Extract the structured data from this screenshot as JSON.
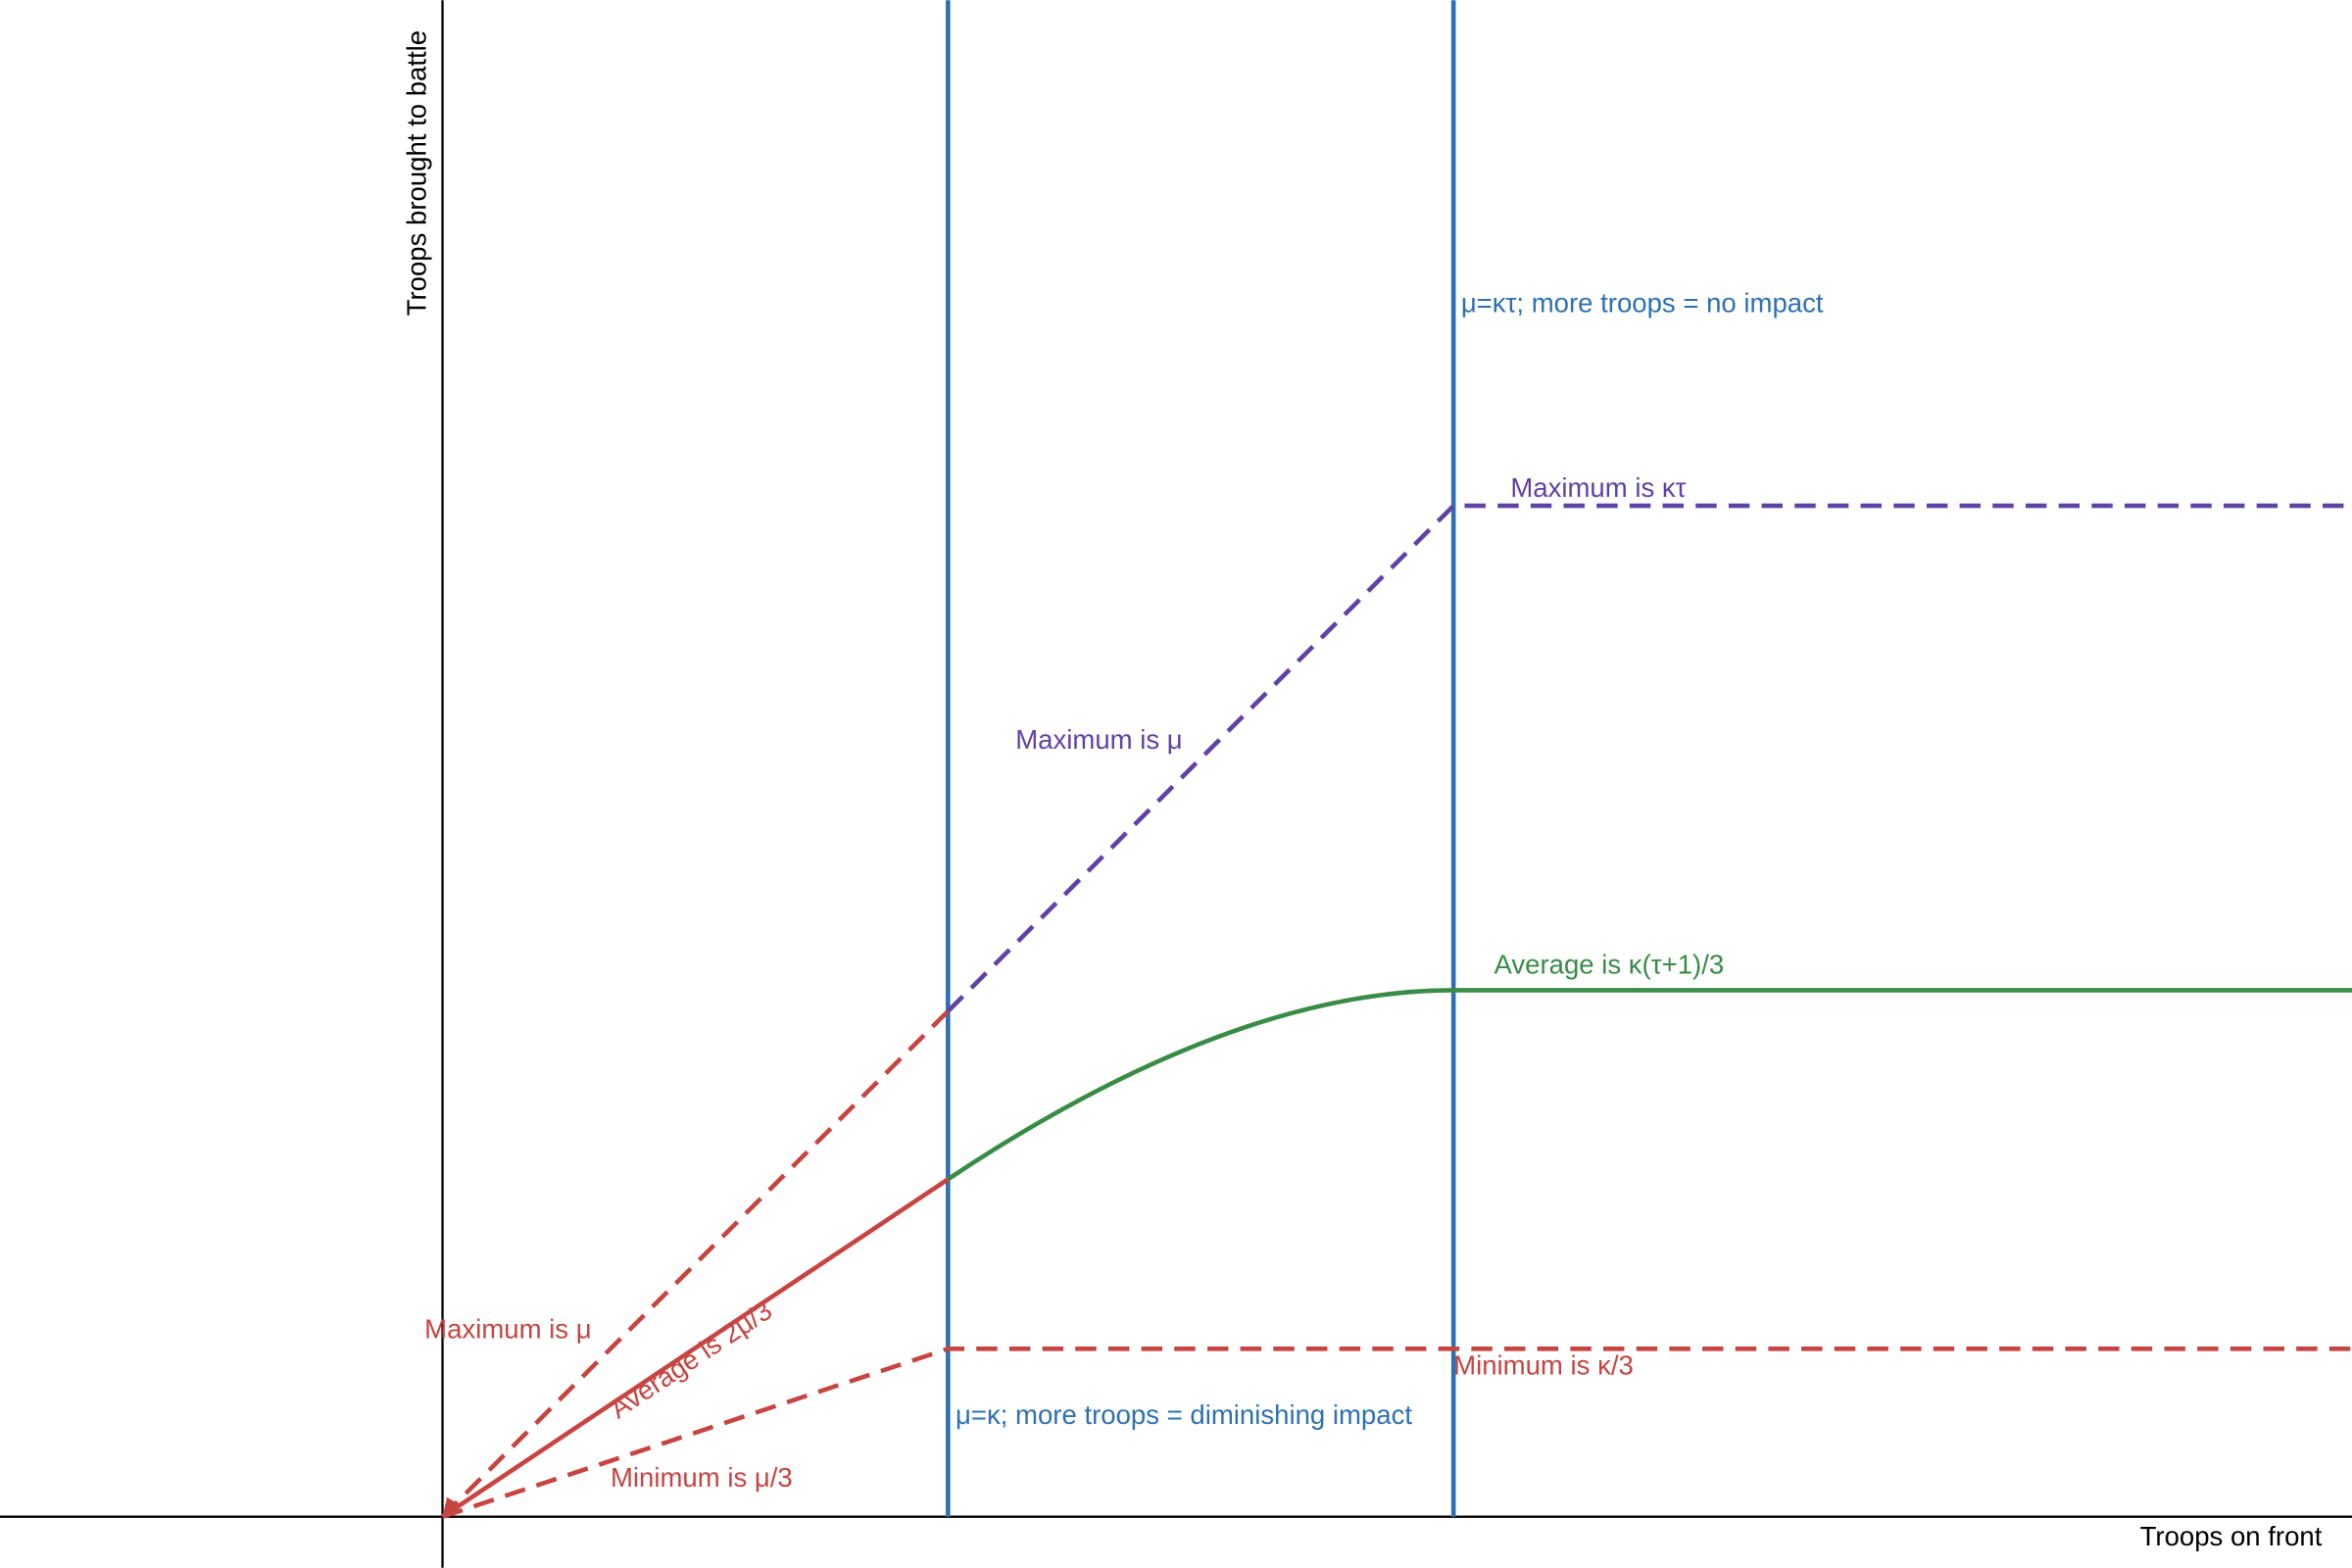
{
  "axes": {
    "x_label": "Troops on front",
    "y_label": "Troops brought to battle"
  },
  "annotations": {
    "no_impact": "μ=κτ; more troops = no impact",
    "max_kt": "Maximum is κτ",
    "max_mu_purple": "Maximum is μ",
    "avg_k": "Average is κ(τ+1)/3",
    "max_mu_red": "Maximum is μ",
    "avg_2mu": "Average is 2μ/3",
    "min_k": "Minimum is κ/3",
    "diminishing": "μ=κ; more troops = diminishing impact",
    "min_mu": "Minimum is μ/3"
  }
}
